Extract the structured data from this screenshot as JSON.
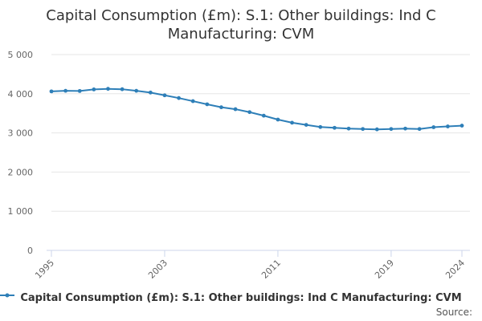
{
  "title_lines": [
    "Capital Consumption (£m): S.1: Other buildings: Ind C",
    "Manufacturing: CVM"
  ],
  "source_label": "Source:",
  "colors": {
    "series": "#2e7fb8",
    "grid": "#e6e6e6",
    "axis": "#ccd6eb",
    "text": "#666666"
  },
  "chart_data": {
    "type": "line",
    "title": "Capital Consumption (£m): S.1: Other buildings: Ind C Manufacturing: CVM",
    "xlabel": "",
    "ylabel": "",
    "ylim": [
      0,
      5000
    ],
    "xlim": [
      1995,
      2024
    ],
    "y_ticks": [
      0,
      1000,
      2000,
      3000,
      4000,
      5000
    ],
    "y_tick_labels": [
      "0",
      "1 000",
      "2 000",
      "3 000",
      "4 000",
      "5 000"
    ],
    "x_ticks": [
      1995,
      2003,
      2011,
      2019,
      2024
    ],
    "x_tick_labels": [
      "1995",
      "2003",
      "2011",
      "2019",
      "2024"
    ],
    "grid": true,
    "legend_position": "bottom",
    "series": [
      {
        "name": "Capital Consumption (£m): S.1: Other buildings: Ind C Manufacturing: CVM",
        "x": [
          1995,
          1996,
          1997,
          1998,
          1999,
          2000,
          2001,
          2002,
          2003,
          2004,
          2005,
          2006,
          2007,
          2008,
          2009,
          2010,
          2011,
          2012,
          2013,
          2014,
          2015,
          2016,
          2017,
          2018,
          2019,
          2020,
          2021,
          2022,
          2023,
          2024
        ],
        "values": [
          4060,
          4075,
          4070,
          4110,
          4125,
          4115,
          4075,
          4030,
          3960,
          3890,
          3810,
          3730,
          3655,
          3605,
          3530,
          3440,
          3340,
          3260,
          3205,
          3150,
          3130,
          3110,
          3100,
          3090,
          3100,
          3110,
          3100,
          3145,
          3165,
          3185
        ]
      }
    ]
  }
}
